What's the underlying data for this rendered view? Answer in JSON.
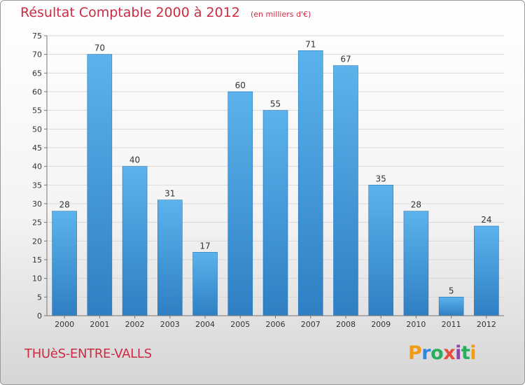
{
  "header": {
    "title": "Résultat Comptable 2000 à 2012",
    "subtitle": "(en milliers d'€)"
  },
  "footer": {
    "commune": "THUèS-ENTRE-VALLS",
    "logo_text": "Proxiti",
    "logo_colors": [
      "#f39c12",
      "#2e86de",
      "#27ae60",
      "#e74c3c",
      "#8e44ad",
      "#27ae60",
      "#f39c12"
    ]
  },
  "chart_data": {
    "type": "bar",
    "title": "Résultat Comptable 2000 à 2012",
    "subtitle": "(en milliers d'€)",
    "xlabel": "",
    "ylabel": "",
    "categories": [
      "2000",
      "2001",
      "2002",
      "2003",
      "2004",
      "2005",
      "2006",
      "2007",
      "2008",
      "2009",
      "2010",
      "2011",
      "2012"
    ],
    "values": [
      28,
      70,
      40,
      31,
      17,
      60,
      55,
      71,
      67,
      35,
      28,
      5,
      24
    ],
    "ylim": [
      0,
      75
    ],
    "yticks": [
      0,
      5,
      10,
      15,
      20,
      25,
      30,
      35,
      40,
      45,
      50,
      55,
      60,
      65,
      70,
      75
    ],
    "grid": true,
    "bar_color": "#4a9fe0",
    "show_data_labels": true
  }
}
